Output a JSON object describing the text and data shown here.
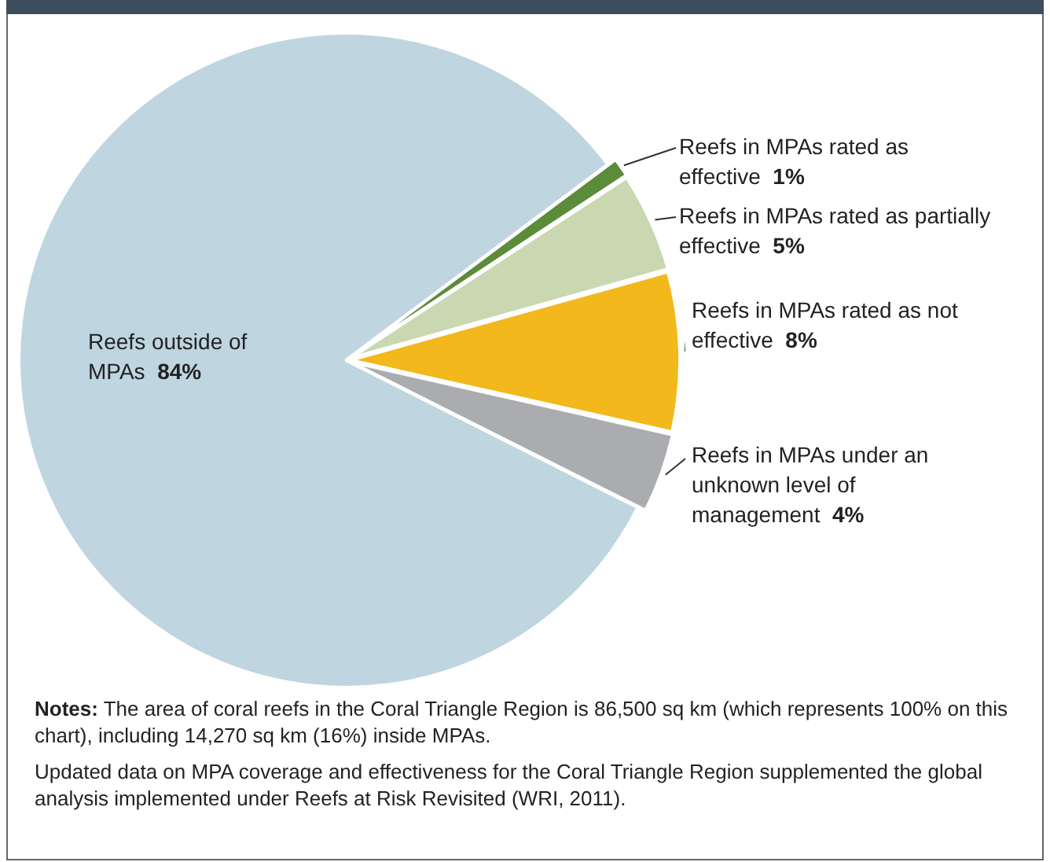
{
  "chart_data": {
    "type": "pie",
    "categories": [
      "Reefs in MPAs rated as effective",
      "Reefs in MPAs rated as partially effective",
      "Reefs in MPAs rated as not effective",
      "Reefs in MPAs under an unknown level of management",
      "Reefs outside of MPAs"
    ],
    "values": [
      1,
      5,
      8,
      4,
      84
    ],
    "colors": [
      "#5b8c3a",
      "#c9d8b0",
      "#f2b81c",
      "#aaacaf",
      "#bfd5e0"
    ],
    "value_labels": [
      "1%",
      "5%",
      "8%",
      "4%",
      "84%"
    ],
    "annotations": [
      "Notes: The area of coral reefs in the Coral Triangle Region is 86,500 sq km (which represents 100% on this chart), including 14,270 sq km (16%) inside MPAs.",
      "Updated data on MPA coverage and effectiveness for the Coral Triangle Region supplemented the global analysis implemented under Reefs at Risk Revisited (WRI, 2011)."
    ]
  }
}
